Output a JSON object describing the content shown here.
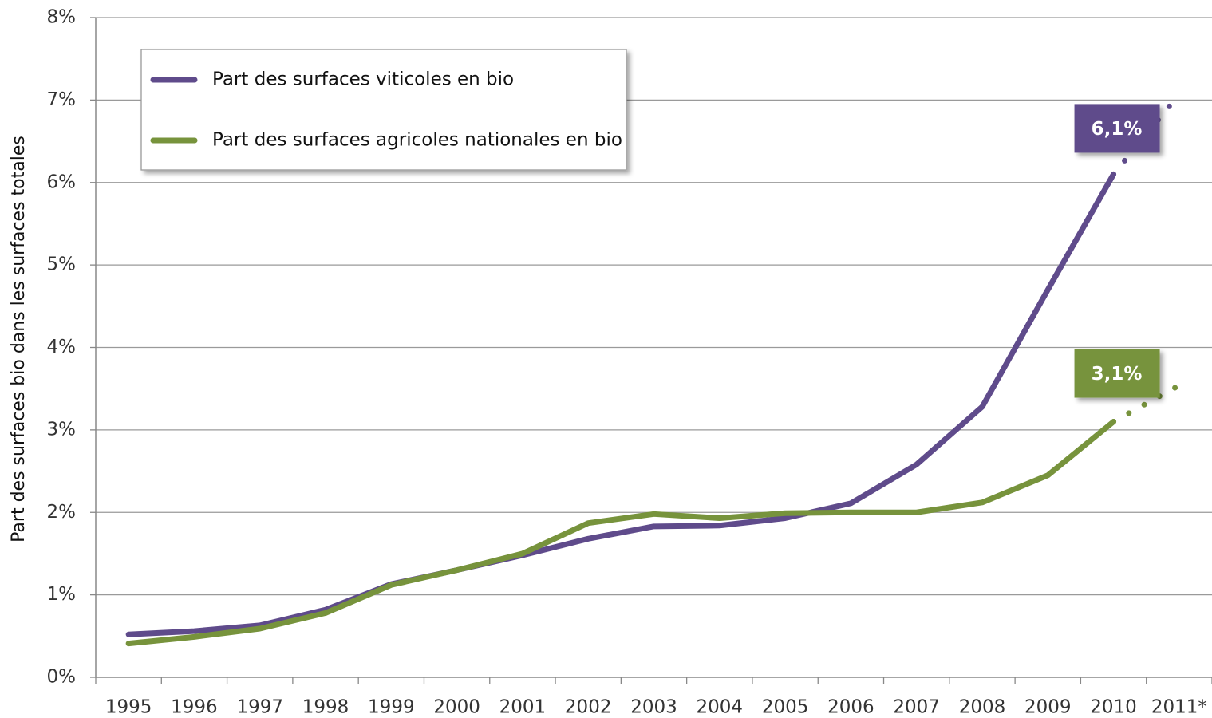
{
  "chart_data": {
    "type": "line",
    "y_label": "Part des surfaces bio dans les surfaces totales",
    "categories": [
      "1995",
      "1996",
      "1997",
      "1998",
      "1999",
      "2000",
      "2001",
      "2002",
      "2003",
      "2004",
      "2005",
      "2006",
      "2007",
      "2008",
      "2009",
      "2010",
      "2011*"
    ],
    "series": [
      {
        "name": "Part des surfaces viticoles en bio",
        "color": "#5f4b8b",
        "values": [
          0.52,
          0.56,
          0.63,
          0.82,
          1.13,
          1.3,
          1.48,
          1.68,
          1.83,
          1.84,
          1.93,
          2.11,
          2.58,
          3.28,
          4.7,
          6.1,
          7.07
        ],
        "value_labels": [
          null,
          null,
          null,
          null,
          null,
          null,
          null,
          null,
          null,
          null,
          null,
          null,
          null,
          null,
          null,
          "6,1%",
          null
        ]
      },
      {
        "name": "Part des surfaces agricoles nationales en bio",
        "color": "#77933c",
        "values": [
          0.41,
          0.49,
          0.59,
          0.78,
          1.12,
          1.3,
          1.5,
          1.87,
          1.98,
          1.93,
          1.99,
          2.0,
          2.0,
          2.12,
          2.45,
          3.1,
          3.54
        ],
        "value_labels": [
          null,
          null,
          null,
          null,
          null,
          null,
          null,
          null,
          null,
          null,
          null,
          null,
          null,
          null,
          null,
          "3,1%",
          null
        ]
      }
    ],
    "ylim": [
      0,
      8
    ],
    "yticks": [
      {
        "value": 0,
        "label": "0%"
      },
      {
        "value": 1,
        "label": "1%"
      },
      {
        "value": 2,
        "label": "2%"
      },
      {
        "value": 3,
        "label": "3%"
      },
      {
        "value": 4,
        "label": "4%"
      },
      {
        "value": 5,
        "label": "5%"
      },
      {
        "value": 6,
        "label": "6%"
      },
      {
        "value": 7,
        "label": "7%"
      },
      {
        "value": 8,
        "label": "8%"
      }
    ],
    "grid": true,
    "legend": "upper left"
  }
}
